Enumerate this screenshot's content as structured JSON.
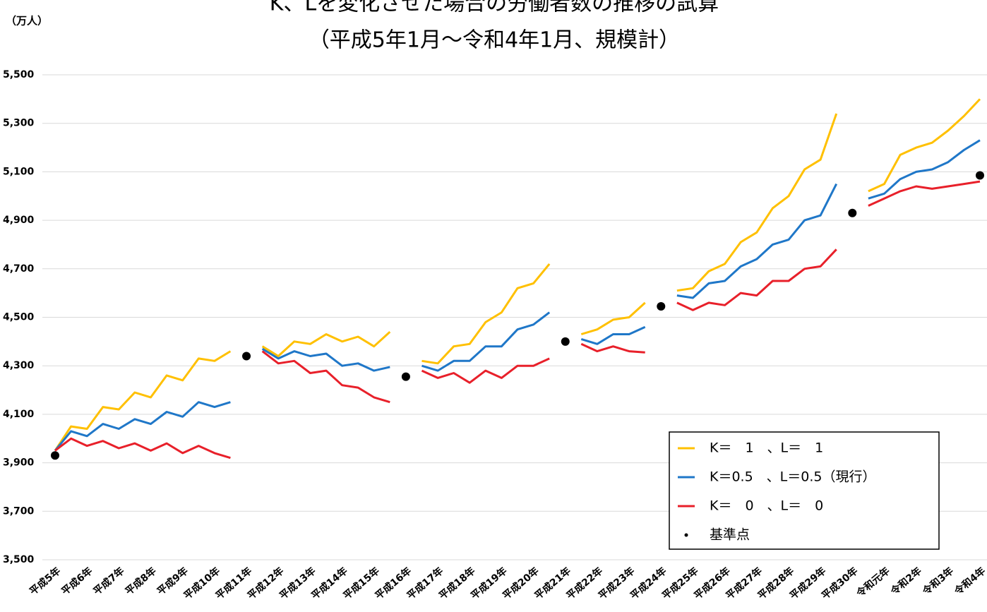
{
  "chart_data": {
    "type": "line",
    "title": "K、Lを変化させた場合の労働者数の推移の試算",
    "subtitle": "（平成5年1月～令和4年1月、規模計）",
    "y_label": "（万人）",
    "categories": [
      "平成5年",
      null,
      "平成6年",
      null,
      "平成7年",
      null,
      "平成8年",
      null,
      "平成9年",
      null,
      "平成10年",
      null,
      "平成11年",
      null,
      "平成12年",
      null,
      "平成13年",
      null,
      "平成14年",
      null,
      "平成15年",
      null,
      "平成16年",
      null,
      "平成17年",
      null,
      "平成18年",
      null,
      "平成19年",
      null,
      "平成20年",
      null,
      "平成21年",
      null,
      "平成22年",
      null,
      "平成23年",
      null,
      "平成24年",
      null,
      "平成25年",
      null,
      "平成26年",
      null,
      "平成27年",
      null,
      "平成28年",
      null,
      "平成29年",
      null,
      "平成30年",
      null,
      "令和元年",
      null,
      "令和2年",
      null,
      "令和3年",
      null,
      "令和4年"
    ],
    "series": [
      {
        "name": "K＝　1　、L＝　1",
        "color": "#ffc000",
        "line": true,
        "values": [
          3950,
          4050,
          4040,
          4130,
          4120,
          4190,
          4170,
          4260,
          4240,
          4330,
          4320,
          4360,
          null,
          4380,
          4340,
          4400,
          4390,
          4430,
          4400,
          4420,
          4380,
          4440,
          null,
          4320,
          4310,
          4380,
          4390,
          4480,
          4520,
          4620,
          4640,
          4720,
          null,
          4430,
          4450,
          4490,
          4500,
          4560,
          null,
          4610,
          4620,
          4690,
          4720,
          4810,
          4850,
          4950,
          5000,
          5110,
          5150,
          5340,
          null,
          5020,
          5050,
          5170,
          5200,
          5220,
          5270,
          5330,
          5400
        ]
      },
      {
        "name": "K＝0.5　、L＝0.5（現行）",
        "color": "#1f77c8",
        "line": true,
        "values": [
          3950,
          4030,
          4010,
          4060,
          4040,
          4080,
          4060,
          4110,
          4090,
          4150,
          4130,
          4150,
          null,
          4370,
          4330,
          4360,
          4340,
          4350,
          4300,
          4310,
          4280,
          4295,
          null,
          4300,
          4280,
          4320,
          4320,
          4380,
          4380,
          4450,
          4470,
          4520,
          null,
          4410,
          4390,
          4430,
          4430,
          4460,
          null,
          4590,
          4580,
          4640,
          4650,
          4710,
          4740,
          4800,
          4820,
          4900,
          4920,
          5050,
          null,
          4990,
          5010,
          5070,
          5100,
          5110,
          5140,
          5190,
          5230
        ]
      },
      {
        "name": "K＝　0　、L＝　0",
        "color": "#e8202a",
        "line": true,
        "values": [
          3950,
          4000,
          3970,
          3990,
          3960,
          3980,
          3950,
          3980,
          3940,
          3970,
          3940,
          3920,
          null,
          4360,
          4310,
          4320,
          4270,
          4280,
          4220,
          4210,
          4170,
          4150,
          null,
          4280,
          4250,
          4270,
          4230,
          4280,
          4250,
          4300,
          4300,
          4330,
          null,
          4390,
          4360,
          4380,
          4360,
          4355,
          null,
          4560,
          4530,
          4560,
          4550,
          4600,
          4590,
          4650,
          4650,
          4700,
          4710,
          4780,
          null,
          4960,
          4990,
          5020,
          5040,
          5030,
          5040,
          5050,
          5060
        ]
      },
      {
        "name": "基準点",
        "color": "#000000",
        "line": false,
        "values": [
          3930,
          null,
          null,
          null,
          null,
          null,
          null,
          null,
          null,
          null,
          null,
          null,
          4340,
          null,
          null,
          null,
          null,
          null,
          null,
          null,
          null,
          null,
          4255,
          null,
          null,
          null,
          null,
          null,
          null,
          null,
          null,
          null,
          4400,
          null,
          null,
          null,
          null,
          null,
          4545,
          null,
          null,
          null,
          null,
          null,
          null,
          null,
          null,
          null,
          null,
          null,
          4930,
          null,
          null,
          null,
          null,
          null,
          null,
          null,
          5085
        ]
      }
    ],
    "ylim": [
      3500,
      5500
    ],
    "yticks": [
      {
        "value": 3500,
        "label": "3,500"
      },
      {
        "value": 3700,
        "label": "3,700"
      },
      {
        "value": 3900,
        "label": "3,900"
      },
      {
        "value": 4100,
        "label": "4,100"
      },
      {
        "value": 4300,
        "label": "4,300"
      },
      {
        "value": 4500,
        "label": "4,500"
      },
      {
        "value": 4700,
        "label": "4,700"
      },
      {
        "value": 4900,
        "label": "4,900"
      },
      {
        "value": 5100,
        "label": "5,100"
      },
      {
        "value": 5300,
        "label": "5,300"
      },
      {
        "value": 5500,
        "label": "5,500"
      }
    ],
    "grid": true,
    "legend": "lower right"
  }
}
